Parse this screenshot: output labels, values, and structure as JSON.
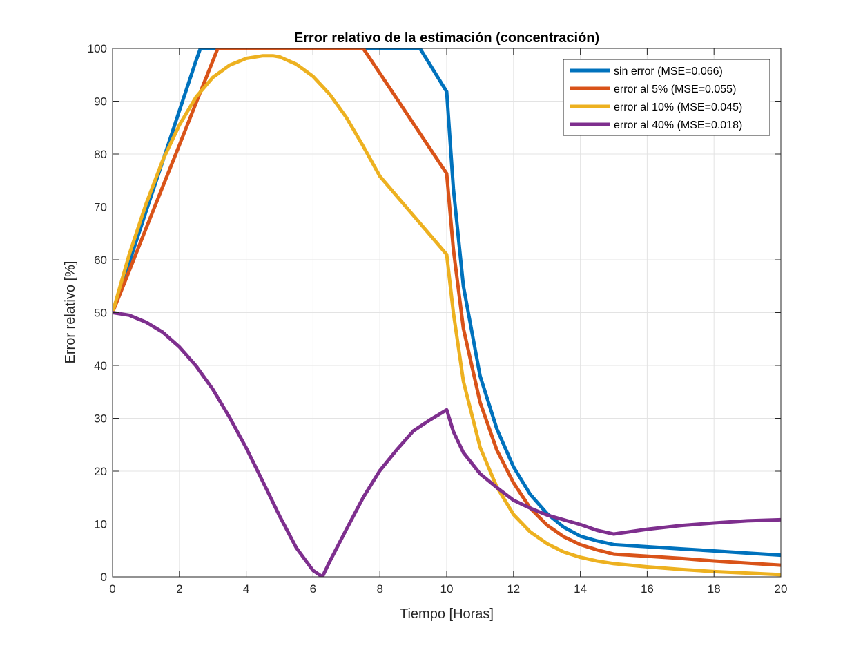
{
  "chart_data": {
    "type": "line",
    "title": "Error relativo de la estimación (concentración)",
    "xlabel": "Tiempo [Horas]",
    "ylabel": "Error relativo [%]",
    "xlim": [
      0,
      20
    ],
    "ylim": [
      0,
      100
    ],
    "xticks": [
      0,
      2,
      4,
      6,
      8,
      10,
      12,
      14,
      16,
      18,
      20
    ],
    "yticks": [
      0,
      10,
      20,
      30,
      40,
      50,
      60,
      70,
      80,
      90,
      100
    ],
    "grid": true,
    "legend_position": "top-right",
    "series": [
      {
        "name": "sin error (MSE=0.066)",
        "color": "#0072BD",
        "x": [
          0,
          0.5,
          1,
          1.5,
          2,
          2.5,
          2.63,
          9.2,
          10,
          10.2,
          10.5,
          11,
          11.5,
          12,
          12.5,
          13,
          13.5,
          14,
          14.5,
          15,
          16,
          17,
          18,
          19,
          20
        ],
        "y": [
          50,
          59.5,
          69.1,
          78.6,
          88.2,
          97.7,
          100,
          100,
          91.8,
          73.5,
          55,
          38,
          28,
          20.8,
          15.6,
          12,
          9.4,
          7.7,
          6.8,
          6.1,
          5.7,
          5.3,
          4.9,
          4.5,
          4.1
        ]
      },
      {
        "name": "error al 5% (MSE=0.055)",
        "color": "#D95319",
        "x": [
          0,
          0.5,
          1,
          1.5,
          2,
          2.5,
          3,
          3.15,
          7.5,
          8,
          9,
          10,
          10.2,
          10.5,
          11,
          11.5,
          12,
          12.5,
          13,
          13.5,
          14,
          14.5,
          15,
          16,
          17,
          18,
          19,
          20
        ],
        "y": [
          50,
          57.9,
          65.9,
          73.8,
          81.7,
          89.7,
          97.6,
          100,
          100,
          95.3,
          85.8,
          76.3,
          62,
          47,
          33,
          24,
          17.8,
          13,
          9.8,
          7.6,
          6.1,
          5.1,
          4.3,
          3.9,
          3.5,
          3.0,
          2.6,
          2.2
        ]
      },
      {
        "name": "error al 10% (MSE=0.045)",
        "color": "#EDB120",
        "x": [
          0,
          0.5,
          1,
          1.5,
          2,
          2.5,
          3,
          3.5,
          4,
          4.5,
          4.8,
          5,
          5.5,
          6,
          6.5,
          7,
          7.5,
          8,
          8.5,
          9,
          9.5,
          10,
          10.2,
          10.5,
          11,
          11.5,
          12,
          12.5,
          13,
          13.5,
          14,
          14.5,
          15,
          16,
          17,
          18,
          19,
          20
        ],
        "y": [
          50,
          61,
          70.5,
          78.8,
          85.5,
          90.8,
          94.5,
          96.8,
          98.1,
          98.6,
          98.6,
          98.4,
          97,
          94.7,
          91.3,
          86.9,
          81.5,
          75.8,
          72.1,
          68.4,
          64.7,
          61,
          50,
          37,
          24.5,
          17,
          11.8,
          8.5,
          6.3,
          4.7,
          3.7,
          3.0,
          2.5,
          1.9,
          1.4,
          1.0,
          0.7,
          0.4
        ]
      },
      {
        "name": "error al 40% (MSE=0.018)",
        "color": "#7E2F8E",
        "x": [
          0,
          0.5,
          1,
          1.5,
          2,
          2.5,
          3,
          3.5,
          4,
          4.5,
          5,
          5.5,
          6,
          6.28,
          6.5,
          7,
          7.5,
          8,
          8.5,
          9,
          9.5,
          10,
          10.2,
          10.5,
          11,
          11.5,
          12,
          12.5,
          13,
          13.5,
          14,
          14.5,
          15,
          16,
          17,
          18,
          19,
          20
        ],
        "y": [
          50,
          49.5,
          48.2,
          46.3,
          43.5,
          39.9,
          35.5,
          30.2,
          24.4,
          18,
          11.5,
          5.5,
          1.2,
          0,
          2.9,
          9,
          15,
          20.1,
          24,
          27.6,
          29.7,
          31.6,
          27.5,
          23.5,
          19.5,
          16.9,
          14.5,
          13,
          11.7,
          10.8,
          9.9,
          8.8,
          8.1,
          9.0,
          9.7,
          10.2,
          10.6,
          10.8
        ]
      }
    ]
  }
}
